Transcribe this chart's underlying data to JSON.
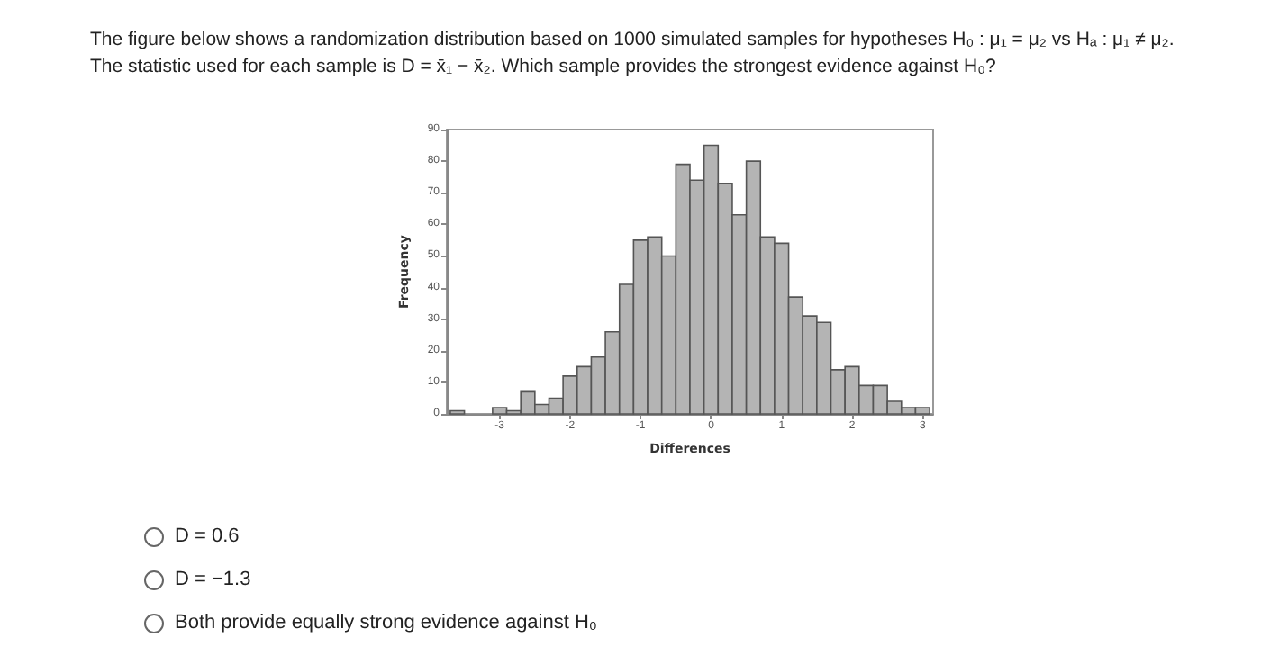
{
  "chart_data": {
    "type": "histogram",
    "title": "The figure below shows a randomization distribution based on 1000 simulated samples for hypotheses H₀ : μ₁ = μ₂ vs Hₐ : μ₁ ≠ μ₂.",
    "subtitle": "The statistic used for each sample is D = x̄₁ − x̄₂. Which sample provides the strongest evidence against H₀?",
    "xlabel": "Differences",
    "ylabel": "Frequency",
    "bins": [
      -3.7,
      -3.5,
      -3.3,
      -3.1,
      -2.9,
      -2.7,
      -2.5,
      -2.3,
      -2.1,
      -1.9,
      -1.7,
      -1.5,
      -1.3,
      -1.1,
      -0.9,
      -0.7,
      -0.5,
      -0.3,
      -0.1,
      0.1,
      0.3,
      0.5,
      0.7,
      0.9,
      1.1,
      1.3,
      1.5,
      1.7,
      1.9,
      2.1,
      2.3,
      2.5,
      2.7,
      2.9,
      3.1
    ],
    "values": [
      1,
      0,
      0,
      2,
      1,
      7,
      3,
      5,
      12,
      15,
      18,
      26,
      41,
      55,
      56,
      50,
      79,
      74,
      85,
      73,
      63,
      80,
      56,
      54,
      37,
      31,
      29,
      14,
      15,
      9,
      9,
      4,
      2,
      2
    ],
    "color": "#b4b4b4",
    "xlim": [
      -3.75,
      3.15
    ],
    "xticks": [
      -3,
      -2,
      -1,
      0,
      1,
      2,
      3
    ],
    "ylim": [
      0,
      90
    ],
    "yticks": [
      0,
      10,
      20,
      30,
      40,
      50,
      60,
      70,
      80,
      90
    ],
    "annotations": [
      "D = 0.6",
      "D = −1.3",
      "Both provide equally strong evidence against H₀"
    ]
  }
}
